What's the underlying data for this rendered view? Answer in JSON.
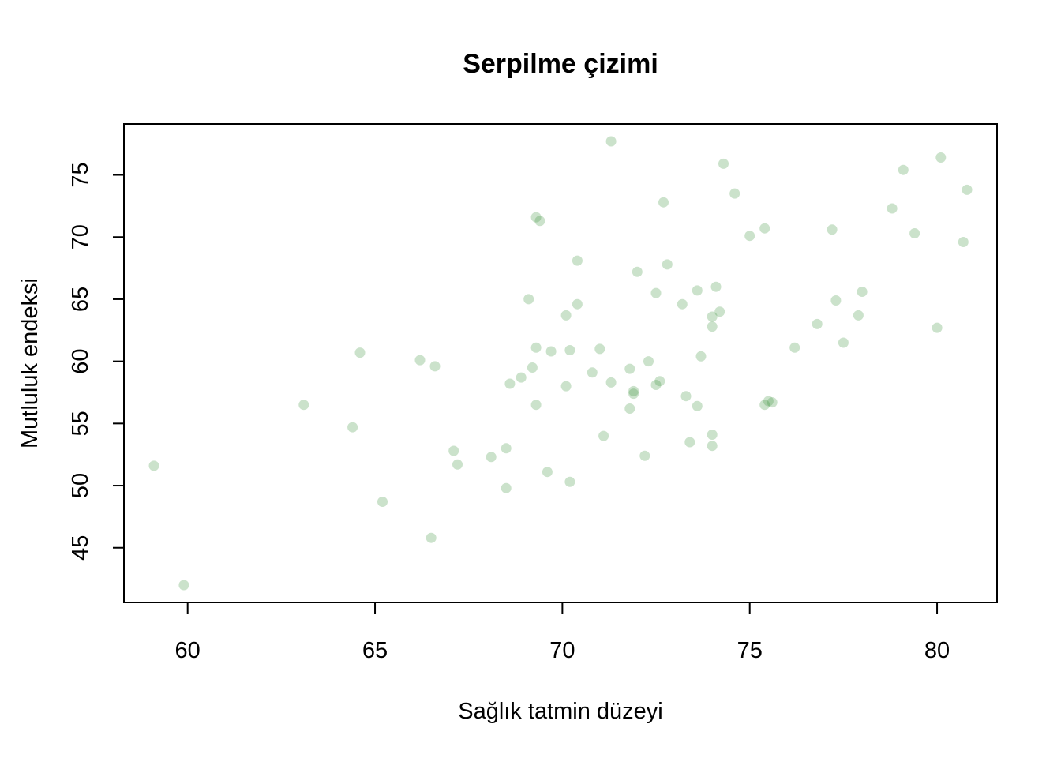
{
  "chart_data": {
    "type": "scatter",
    "title": "Serpilme çizimi",
    "xlabel": "Sağlık tatmin düzeyi",
    "ylabel": "Mutluluk endeksi",
    "xlim": [
      58.3,
      81.6
    ],
    "ylim": [
      40.6,
      79.1
    ],
    "xticks": [
      60,
      65,
      70,
      75,
      80
    ],
    "yticks": [
      45,
      50,
      55,
      60,
      65,
      70,
      75
    ],
    "point_color": "#2e8b2e",
    "point_opacity": 0.25,
    "grid": false,
    "legend": "none",
    "x": [
      59.1,
      59.9,
      63.1,
      64.4,
      64.6,
      65.2,
      66.2,
      66.5,
      66.6,
      67.1,
      67.2,
      68.1,
      68.5,
      68.5,
      68.6,
      68.9,
      69.1,
      69.2,
      69.3,
      69.3,
      69.3,
      69.4,
      69.6,
      69.7,
      70.1,
      70.1,
      70.2,
      70.2,
      70.4,
      70.4,
      70.8,
      71.0,
      71.1,
      71.3,
      71.3,
      71.8,
      71.8,
      71.9,
      71.9,
      72.0,
      72.2,
      72.3,
      72.5,
      72.5,
      72.6,
      72.7,
      72.8,
      73.2,
      73.3,
      73.4,
      73.6,
      73.6,
      73.7,
      74.0,
      74.0,
      74.0,
      74.0,
      74.1,
      74.2,
      74.3,
      74.6,
      75.0,
      75.4,
      75.4,
      75.5,
      75.6,
      76.2,
      76.8,
      77.2,
      77.3,
      77.5,
      77.9,
      78.0,
      78.8,
      79.1,
      79.4,
      80.0,
      80.1,
      80.7,
      80.8
    ],
    "y": [
      51.6,
      42.0,
      56.5,
      54.7,
      60.7,
      48.7,
      60.1,
      45.8,
      59.6,
      52.8,
      51.7,
      52.3,
      49.8,
      53.0,
      58.2,
      58.7,
      65.0,
      59.5,
      56.5,
      61.1,
      71.6,
      71.3,
      51.1,
      60.8,
      63.7,
      58.0,
      50.3,
      60.9,
      64.6,
      68.1,
      59.1,
      61.0,
      54.0,
      58.3,
      77.7,
      56.2,
      59.4,
      57.4,
      57.6,
      67.2,
      52.4,
      60.0,
      58.1,
      65.5,
      58.4,
      72.8,
      67.8,
      64.6,
      57.2,
      53.5,
      65.7,
      56.4,
      60.4,
      62.8,
      63.6,
      54.1,
      53.2,
      66.0,
      64.0,
      75.9,
      73.5,
      70.1,
      56.5,
      70.7,
      56.8,
      56.7,
      61.1,
      63.0,
      70.6,
      64.9,
      61.5,
      63.7,
      65.6,
      72.3,
      75.4,
      70.3,
      62.7,
      76.4,
      69.6,
      73.8
    ]
  }
}
